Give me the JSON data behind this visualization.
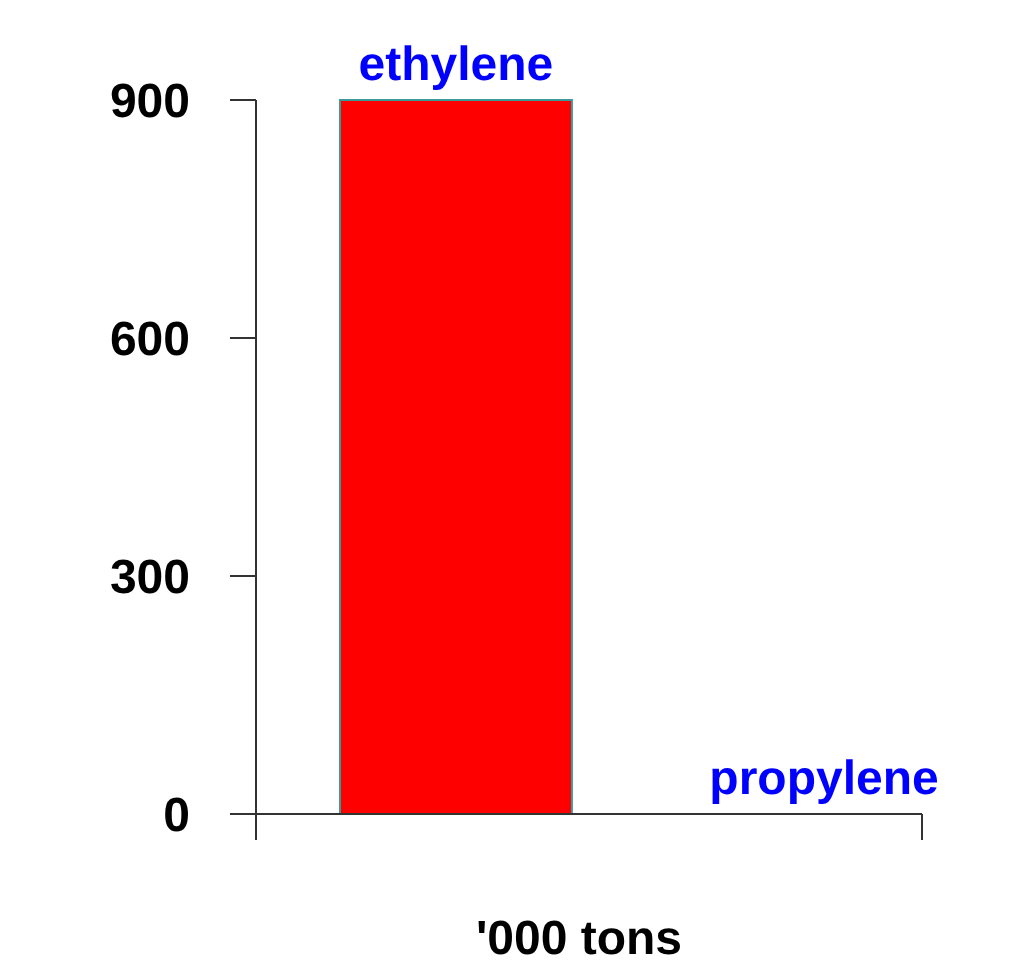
{
  "chart_data": {
    "type": "bar",
    "xlabel": "'000 tons",
    "categories": [
      "ethylene",
      "propylene"
    ],
    "values": [
      900,
      0
    ],
    "color": "#ff0000",
    "ylim": [
      0,
      900
    ],
    "yticks": [
      0,
      300,
      600,
      900
    ],
    "grid": false
  }
}
